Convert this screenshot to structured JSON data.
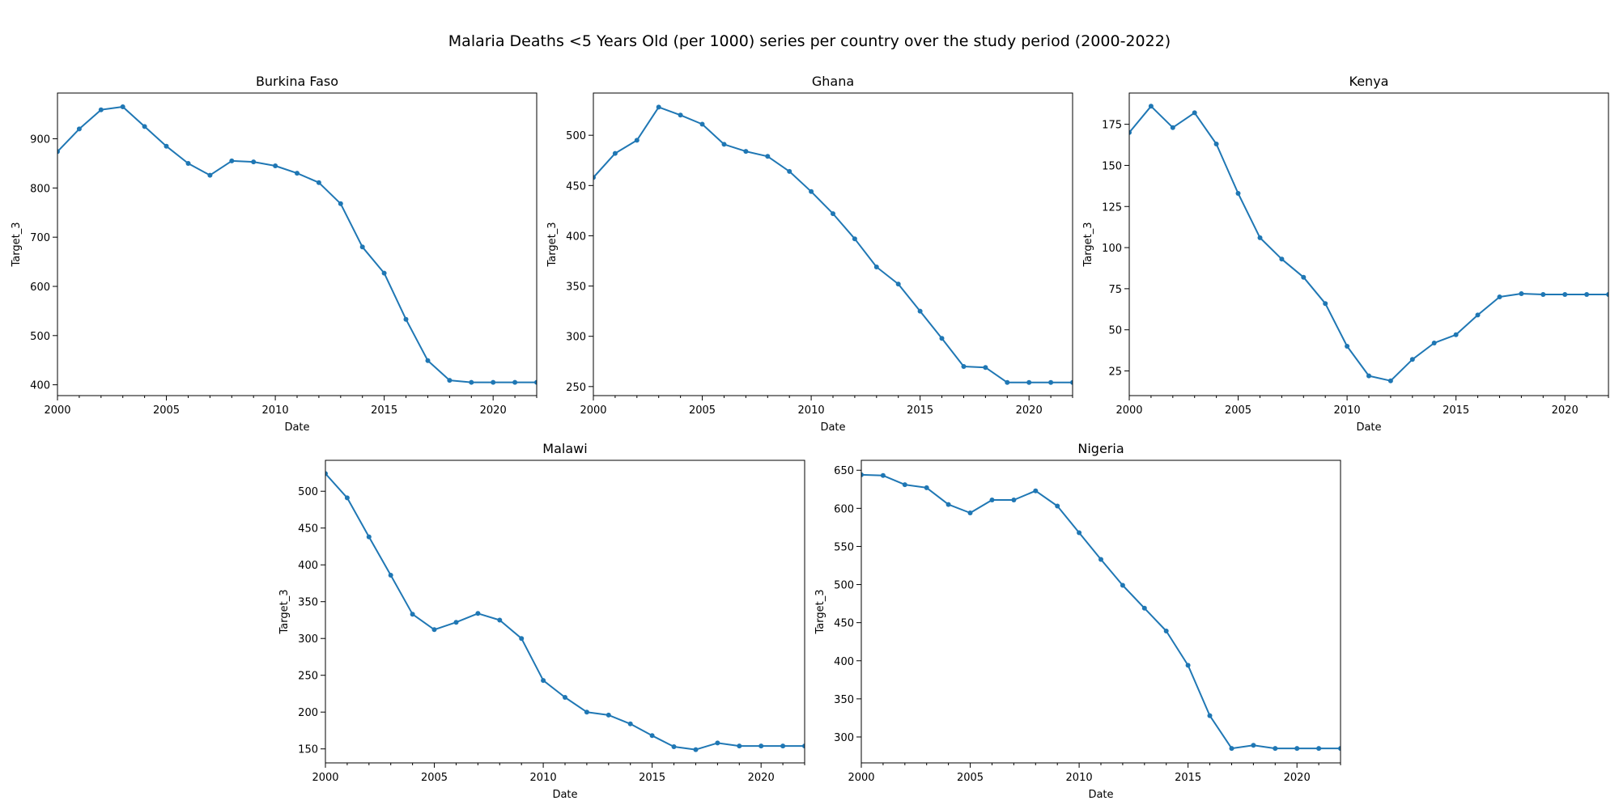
{
  "figure": {
    "suptitle": "Malaria Deaths <5 Years Old (per 1000) series per country over the study period (2000-2022)"
  },
  "chart_data": [
    {
      "type": "line",
      "title": "Burkina Faso",
      "xlabel": "Date",
      "ylabel": "Target_3",
      "xlim": [
        2000,
        2022
      ],
      "ylim": [
        378,
        993
      ],
      "xticks": [
        2000,
        2005,
        2010,
        2015,
        2020
      ],
      "yticks": [
        400,
        500,
        600,
        700,
        800,
        900
      ],
      "color": "#1f77b4",
      "x": [
        2000,
        2001,
        2002,
        2003,
        2004,
        2005,
        2006,
        2007,
        2008,
        2009,
        2010,
        2011,
        2012,
        2013,
        2014,
        2015,
        2016,
        2017,
        2018,
        2019,
        2020,
        2021,
        2022
      ],
      "y": [
        874,
        920,
        959,
        965,
        925,
        885,
        850,
        826,
        855,
        853,
        845,
        830,
        811,
        768,
        680,
        627,
        533,
        449,
        409,
        405,
        405,
        405,
        405
      ]
    },
    {
      "type": "line",
      "title": "Ghana",
      "xlabel": "Date",
      "ylabel": "Target_3",
      "xlim": [
        2000,
        2022
      ],
      "ylim": [
        241,
        542
      ],
      "xticks": [
        2000,
        2005,
        2010,
        2015,
        2020
      ],
      "yticks": [
        250,
        300,
        350,
        400,
        450,
        500
      ],
      "color": "#1f77b4",
      "x": [
        2000,
        2001,
        2002,
        2003,
        2004,
        2005,
        2006,
        2007,
        2008,
        2009,
        2010,
        2011,
        2012,
        2013,
        2014,
        2015,
        2016,
        2017,
        2018,
        2019,
        2020,
        2021,
        2022
      ],
      "y": [
        458,
        482,
        495,
        528,
        520,
        511,
        491,
        484,
        479,
        464,
        444,
        422,
        397,
        369,
        352,
        325,
        298,
        270,
        269,
        254,
        254,
        254,
        254
      ]
    },
    {
      "type": "line",
      "title": "Kenya",
      "xlabel": "Date",
      "ylabel": "Target_3",
      "xlim": [
        2000,
        2022
      ],
      "ylim": [
        10,
        194
      ],
      "xticks": [
        2000,
        2005,
        2010,
        2015,
        2020
      ],
      "yticks": [
        25,
        50,
        75,
        100,
        125,
        150,
        175
      ],
      "color": "#1f77b4",
      "x": [
        2000,
        2001,
        2002,
        2003,
        2004,
        2005,
        2006,
        2007,
        2008,
        2009,
        2010,
        2011,
        2012,
        2013,
        2014,
        2015,
        2016,
        2017,
        2018,
        2019,
        2020,
        2021,
        2022
      ],
      "y": [
        170,
        186,
        173,
        182,
        163,
        133,
        106,
        93,
        82,
        66,
        40,
        22,
        19,
        32,
        42,
        47,
        59,
        70,
        72,
        71.5,
        71.5,
        71.5,
        71.5
      ]
    },
    {
      "type": "line",
      "title": "Malawi",
      "xlabel": "Date",
      "ylabel": "Target_3",
      "xlim": [
        2000,
        2022
      ],
      "ylim": [
        131,
        542
      ],
      "xticks": [
        2000,
        2005,
        2010,
        2015,
        2020
      ],
      "yticks": [
        150,
        200,
        250,
        300,
        350,
        400,
        450,
        500
      ],
      "color": "#1f77b4",
      "x": [
        2000,
        2001,
        2002,
        2003,
        2004,
        2005,
        2006,
        2007,
        2008,
        2009,
        2010,
        2011,
        2012,
        2013,
        2014,
        2015,
        2016,
        2017,
        2018,
        2019,
        2020,
        2021,
        2022
      ],
      "y": [
        524,
        491,
        438,
        386,
        333,
        312,
        322,
        334,
        325,
        300,
        243,
        220,
        200,
        196,
        184,
        168,
        153,
        149,
        158,
        154,
        154,
        154,
        154
      ]
    },
    {
      "type": "line",
      "title": "Nigeria",
      "xlabel": "Date",
      "ylabel": "Target_3",
      "xlim": [
        2000,
        2022
      ],
      "ylim": [
        266,
        663
      ],
      "xticks": [
        2000,
        2005,
        2010,
        2015,
        2020
      ],
      "yticks": [
        300,
        350,
        400,
        450,
        500,
        550,
        600,
        650
      ],
      "color": "#1f77b4",
      "x": [
        2000,
        2001,
        2002,
        2003,
        2004,
        2005,
        2006,
        2007,
        2008,
        2009,
        2010,
        2011,
        2012,
        2013,
        2014,
        2015,
        2016,
        2017,
        2018,
        2019,
        2020,
        2021,
        2022
      ],
      "y": [
        644,
        643,
        631,
        627,
        605,
        594,
        611,
        611,
        623,
        603,
        568,
        533,
        499,
        469,
        439,
        394,
        328,
        285,
        289,
        285,
        285,
        285,
        285
      ]
    }
  ]
}
